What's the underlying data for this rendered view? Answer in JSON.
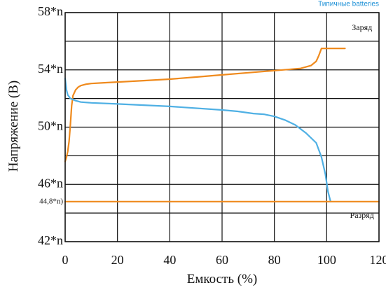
{
  "header": {
    "note": "Типичные batteries"
  },
  "chart_data": {
    "type": "line",
    "xlabel": "Емкость (%)",
    "ylabel": "Напряжение (В)",
    "xlim": [
      0,
      120
    ],
    "ylim": [
      42,
      58
    ],
    "x_ticks": [
      "0",
      "20",
      "40",
      "60",
      "80",
      "100",
      "120"
    ],
    "y_ticks": [
      {
        "value": 58,
        "label": "58*n"
      },
      {
        "value": 54,
        "label": "54*n"
      },
      {
        "value": 50,
        "label": "50*n"
      },
      {
        "value": 46,
        "label": "46*n"
      },
      {
        "value": 44.8,
        "label": "44,8*n)"
      },
      {
        "value": 42,
        "label": "42*n"
      }
    ],
    "grid": true,
    "series": [
      {
        "color": "#ef8a1d",
        "points": [
          [
            0,
            47.6
          ],
          [
            0.5,
            47.9
          ],
          [
            1,
            48.3
          ],
          [
            1.5,
            49
          ],
          [
            2,
            50.2
          ],
          [
            2.5,
            51.5
          ],
          [
            3,
            52.2
          ],
          [
            4,
            52.6
          ],
          [
            5,
            52.8
          ],
          [
            6,
            52.9
          ],
          [
            8,
            53.0
          ],
          [
            10,
            53.05
          ],
          [
            15,
            53.1
          ],
          [
            20,
            53.15
          ],
          [
            30,
            53.25
          ],
          [
            40,
            53.35
          ],
          [
            50,
            53.5
          ],
          [
            60,
            53.65
          ],
          [
            70,
            53.8
          ],
          [
            80,
            53.95
          ],
          [
            90,
            54.1
          ],
          [
            94,
            54.3
          ],
          [
            96,
            54.6
          ],
          [
            97,
            55.0
          ],
          [
            98,
            55.5
          ],
          [
            100,
            55.5
          ],
          [
            107,
            55.5
          ]
        ]
      },
      {
        "color": "#4fb0e4",
        "points": [
          [
            0,
            53.4
          ],
          [
            0.5,
            52.6
          ],
          [
            1,
            52.25
          ],
          [
            2,
            52.0
          ],
          [
            4,
            51.85
          ],
          [
            6,
            51.75
          ],
          [
            10,
            51.7
          ],
          [
            20,
            51.62
          ],
          [
            40,
            51.45
          ],
          [
            60,
            51.2
          ],
          [
            66,
            51.1
          ],
          [
            72,
            50.95
          ],
          [
            76,
            50.9
          ],
          [
            80,
            50.75
          ],
          [
            84,
            50.5
          ],
          [
            88,
            50.15
          ],
          [
            92,
            49.6
          ],
          [
            96,
            48.9
          ],
          [
            98,
            47.9
          ],
          [
            99.5,
            46.7
          ],
          [
            100.5,
            45.5
          ],
          [
            101.5,
            44.8
          ]
        ]
      },
      {
        "color": "#ef8a1d",
        "points": [
          [
            0,
            44.8
          ],
          [
            120,
            44.8
          ]
        ]
      }
    ],
    "annotations": [
      {
        "text": "Заряд",
        "x": 113.5,
        "y": 56.9
      },
      {
        "text": "Разряд",
        "x": 113.5,
        "y": 43.8
      }
    ]
  }
}
